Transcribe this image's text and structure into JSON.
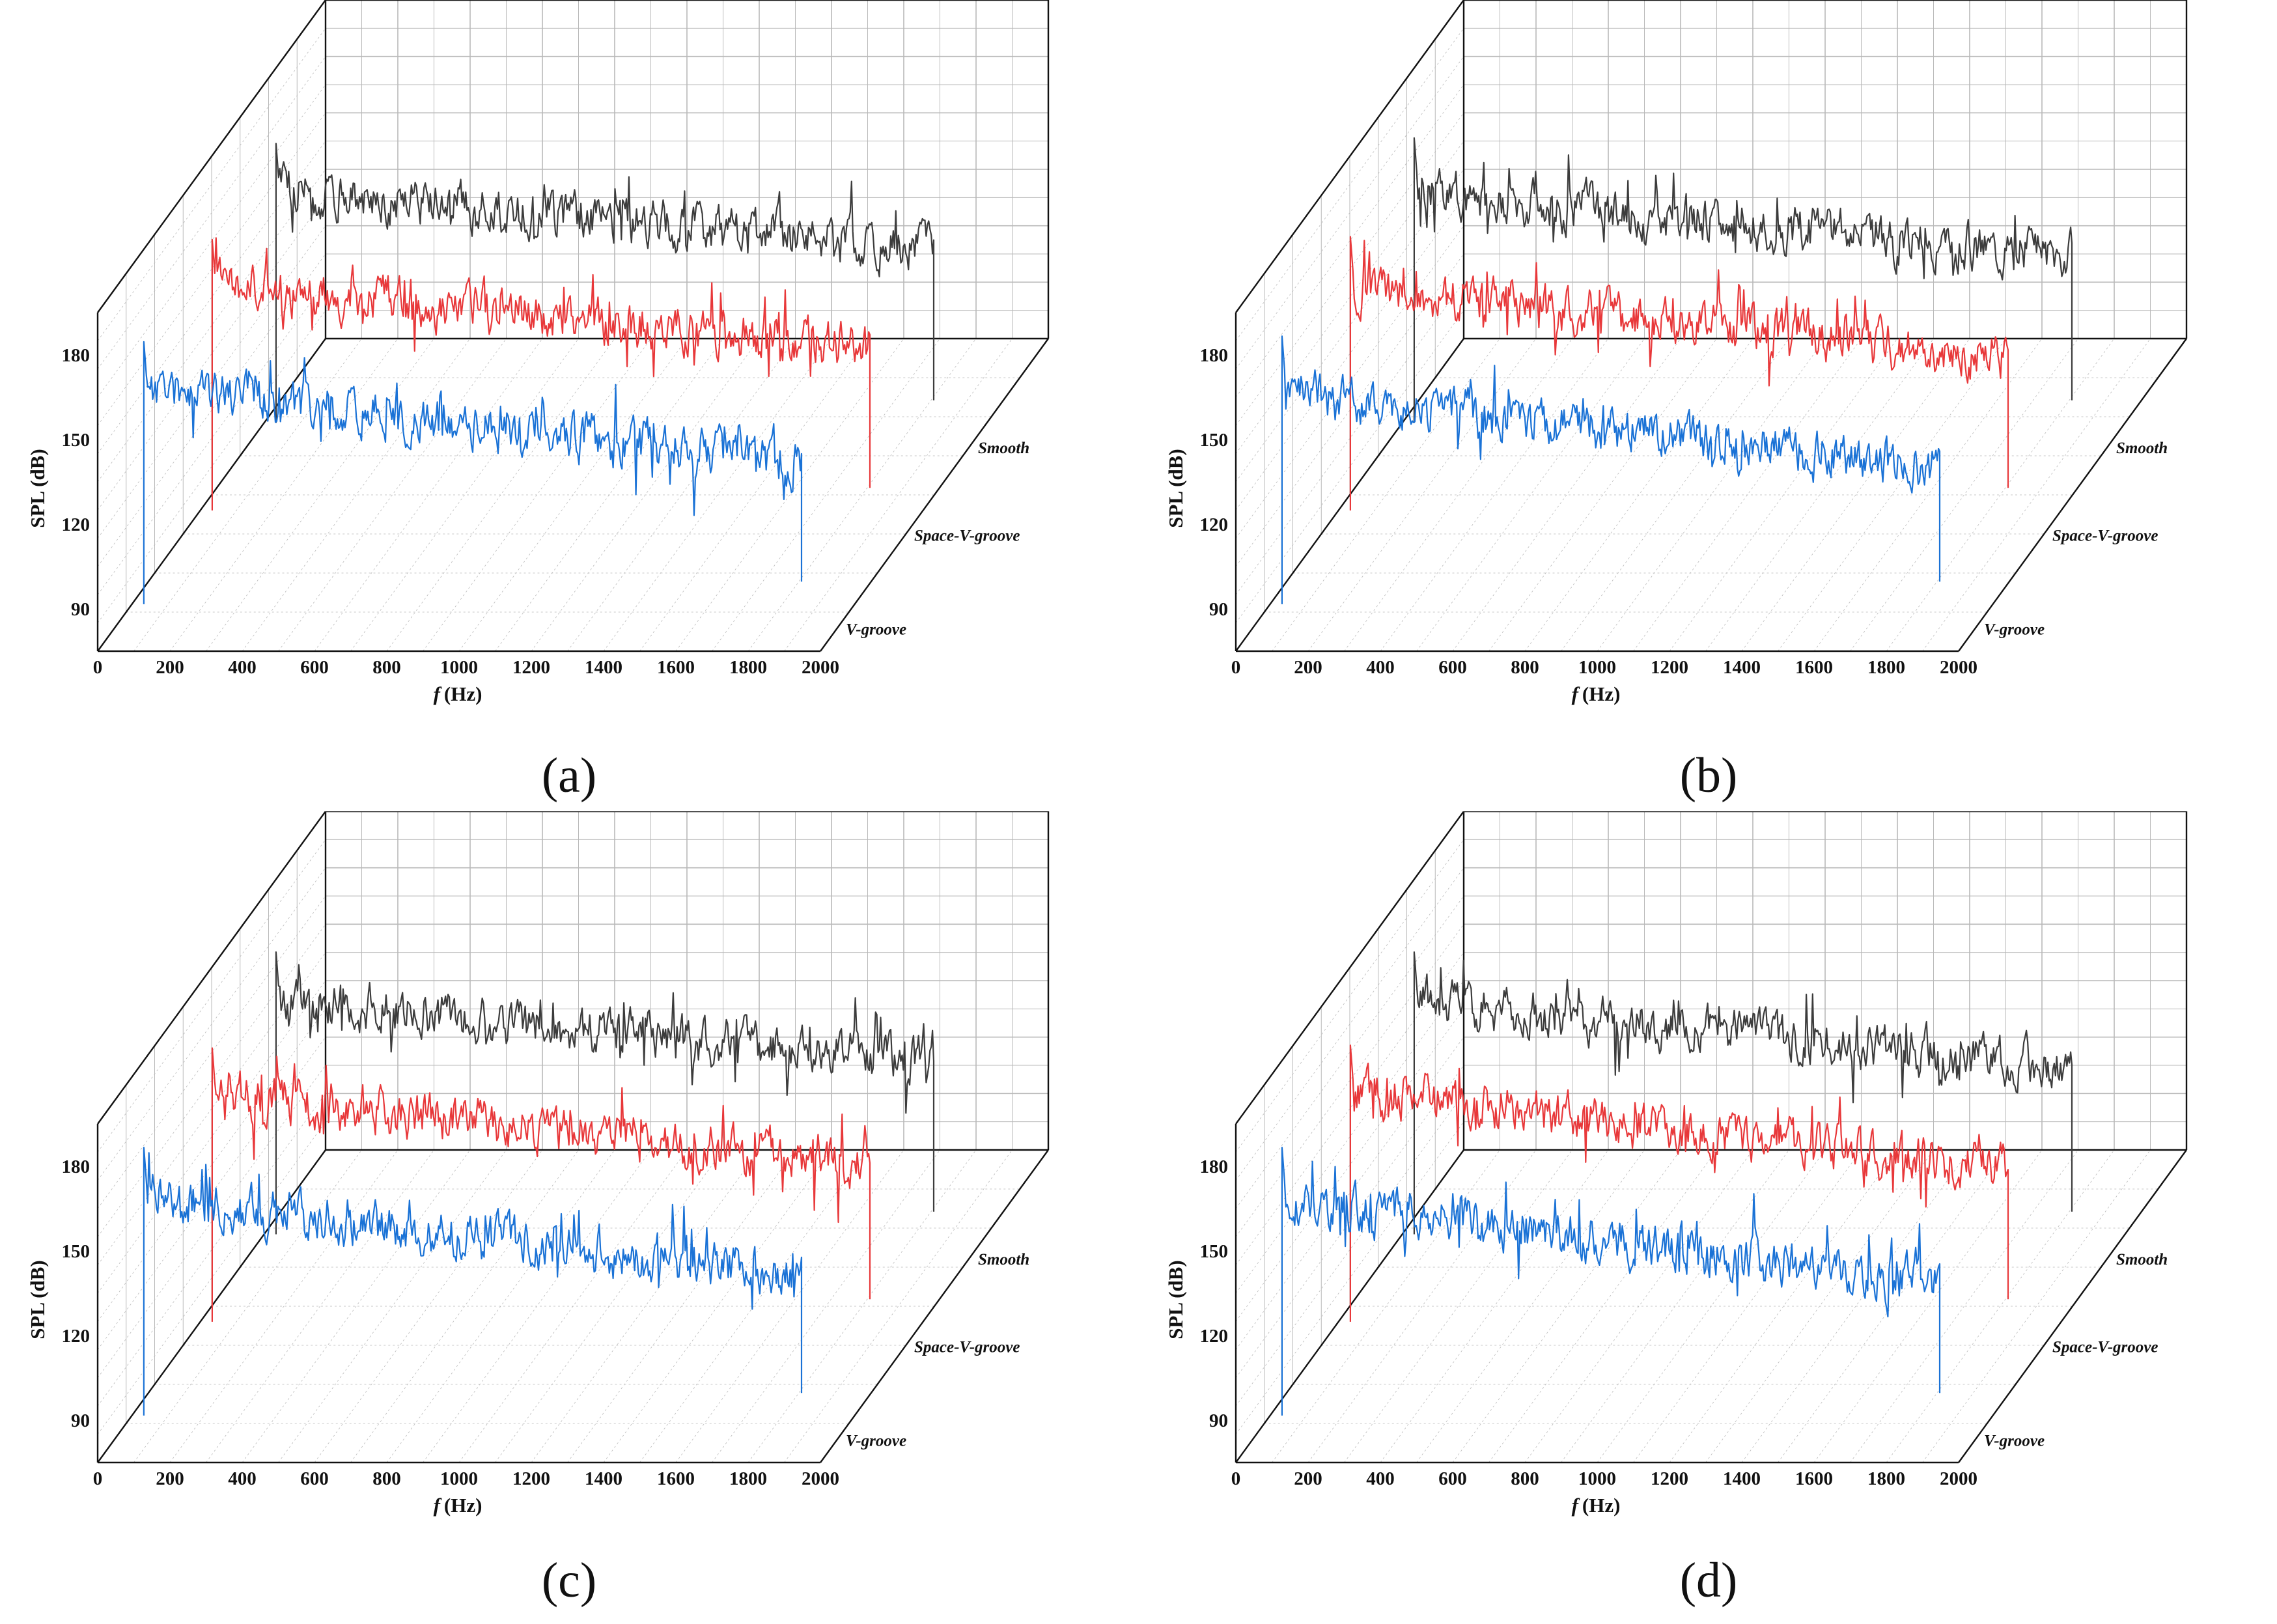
{
  "figure": {
    "panels": [
      "a",
      "b",
      "c",
      "d"
    ]
  },
  "colors": {
    "smooth": "#3c3c3c",
    "space_v_groove": "#e8383a",
    "v_groove": "#1a72d6",
    "grid": "#b9b9b9",
    "frame": "#111111"
  },
  "chart_data": [
    {
      "panel": "a",
      "caption": "(a)",
      "type": "line",
      "projection": "3d-waterfall",
      "xlabel_prefix": "f",
      "xlabel_unit": "(Hz)",
      "ylabel": "SPL (dB)",
      "xlim": [
        0,
        2000
      ],
      "ylim": [
        75,
        195
      ],
      "x_ticks": [
        0,
        200,
        400,
        600,
        800,
        1000,
        1200,
        1400,
        1600,
        1800,
        2000
      ],
      "y_ticks": [
        90,
        120,
        150,
        180
      ],
      "series": [
        {
          "name": "V-groove",
          "key": "v_groove",
          "start": 162,
          "end": 134,
          "peak": 178,
          "noise": 6,
          "seed": 11
        },
        {
          "name": "Space-V-groove",
          "key": "space_v_groove",
          "start": 165,
          "end": 141,
          "peak": 181,
          "noise": 6,
          "seed": 23
        },
        {
          "name": "Smooth",
          "key": "smooth",
          "start": 168,
          "end": 145,
          "peak": 184,
          "noise": 6,
          "seed": 37
        }
      ]
    },
    {
      "panel": "b",
      "caption": "(b)",
      "type": "line",
      "projection": "3d-waterfall",
      "xlabel_prefix": "f",
      "xlabel_unit": "(Hz)",
      "ylabel": "SPL (dB)",
      "xlim": [
        0,
        2000
      ],
      "ylim": [
        75,
        195
      ],
      "x_ticks": [
        0,
        200,
        400,
        600,
        800,
        1000,
        1200,
        1400,
        1600,
        1800,
        2000
      ],
      "y_ticks": [
        90,
        120,
        150,
        180
      ],
      "series": [
        {
          "name": "V-groove",
          "key": "v_groove",
          "start": 160,
          "end": 132,
          "peak": 180,
          "noise": 6,
          "seed": 41
        },
        {
          "name": "Space-V-groove",
          "key": "space_v_groove",
          "start": 164,
          "end": 138,
          "peak": 182,
          "noise": 6,
          "seed": 53
        },
        {
          "name": "Smooth",
          "key": "smooth",
          "start": 167,
          "end": 143,
          "peak": 186,
          "noise": 6,
          "seed": 67
        }
      ]
    },
    {
      "panel": "c",
      "caption": "(c)",
      "type": "line",
      "projection": "3d-waterfall",
      "xlabel_prefix": "f",
      "xlabel_unit": "(Hz)",
      "ylabel": "SPL (dB)",
      "xlim": [
        0,
        2000
      ],
      "ylim": [
        75,
        195
      ],
      "x_ticks": [
        0,
        200,
        400,
        600,
        800,
        1000,
        1200,
        1400,
        1600,
        1800,
        2000
      ],
      "y_ticks": [
        90,
        120,
        150,
        180
      ],
      "series": [
        {
          "name": "V-groove",
          "key": "v_groove",
          "start": 163,
          "end": 132,
          "peak": 180,
          "noise": 6,
          "seed": 71
        },
        {
          "name": "Space-V-groove",
          "key": "space_v_groove",
          "start": 166,
          "end": 140,
          "peak": 182,
          "noise": 6,
          "seed": 83
        },
        {
          "name": "Smooth",
          "key": "smooth",
          "start": 168,
          "end": 145,
          "peak": 185,
          "noise": 6,
          "seed": 97
        }
      ]
    },
    {
      "panel": "d",
      "caption": "(d)",
      "type": "line",
      "projection": "3d-waterfall",
      "xlabel_prefix": "f",
      "xlabel_unit": "(Hz)",
      "ylabel": "SPL (dB)",
      "xlim": [
        0,
        2000
      ],
      "ylim": [
        75,
        195
      ],
      "x_ticks": [
        0,
        200,
        400,
        600,
        800,
        1000,
        1200,
        1400,
        1600,
        1800,
        2000
      ],
      "y_ticks": [
        90,
        120,
        150,
        180
      ],
      "series": [
        {
          "name": "V-groove",
          "key": "v_groove",
          "start": 162,
          "end": 130,
          "peak": 180,
          "noise": 6,
          "seed": 101
        },
        {
          "name": "Space-V-groove",
          "key": "space_v_groove",
          "start": 166,
          "end": 138,
          "peak": 183,
          "noise": 6,
          "seed": 113
        },
        {
          "name": "Smooth",
          "key": "smooth",
          "start": 168,
          "end": 143,
          "peak": 185,
          "noise": 6,
          "seed": 127
        }
      ]
    }
  ]
}
